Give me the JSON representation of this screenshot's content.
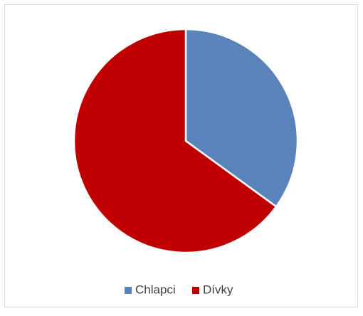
{
  "chart_data": {
    "type": "pie",
    "categories": [
      "Chlapci",
      "Dívky"
    ],
    "values": [
      35,
      65
    ],
    "colors": [
      "#5a83bb",
      "#c00000"
    ],
    "legend": "bottom"
  }
}
